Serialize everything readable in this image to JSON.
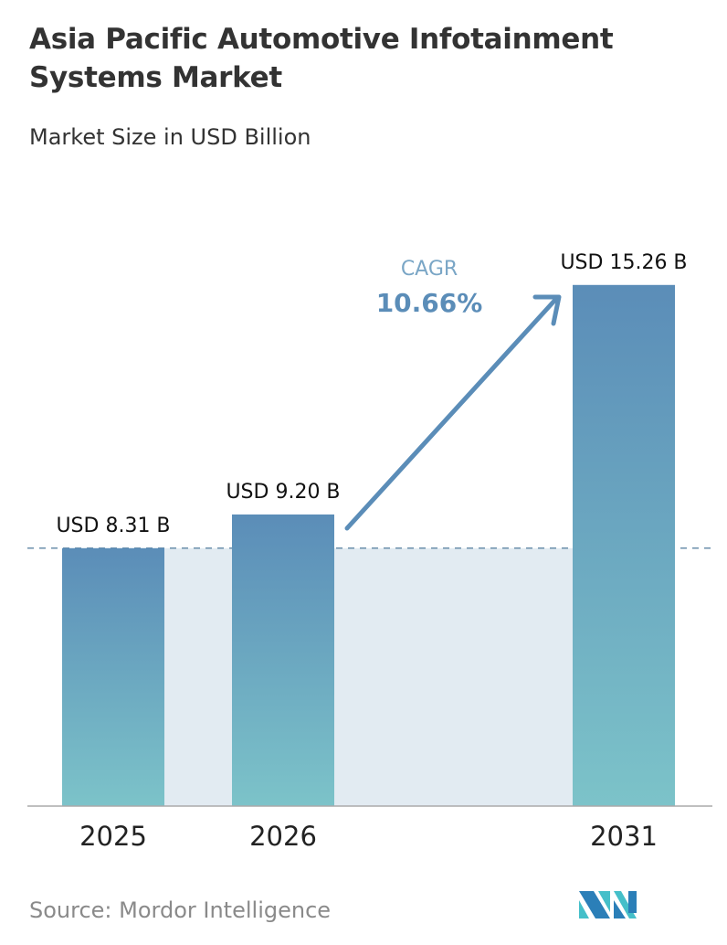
{
  "chart_data": {
    "type": "bar",
    "title": "Asia Pacific Automotive Infotainment Systems Market",
    "subtitle": "Market Size in USD Billion",
    "categories": [
      "2025",
      "2026",
      "2031"
    ],
    "values": [
      8.31,
      9.2,
      15.26
    ],
    "data_labels": [
      "USD 8.31 B",
      "USD 9.20 B",
      "USD 15.26 B"
    ],
    "xlabel": "",
    "ylabel": "",
    "ylim": [
      1.5,
      16
    ],
    "grid": false,
    "annotation": {
      "label": "CAGR",
      "value": "10.66%"
    },
    "colors": {
      "bar_top": "#5b8db8",
      "bar_bottom": "#7cc3c9",
      "shade": "#e2ebf2",
      "arrow": "#5b8db8",
      "cagr_label": "#7aa6c6",
      "cagr_value": "#5b8db8"
    }
  },
  "source": "Source:  Mordor Intelligence",
  "logo": "Mordor Intelligence logo"
}
